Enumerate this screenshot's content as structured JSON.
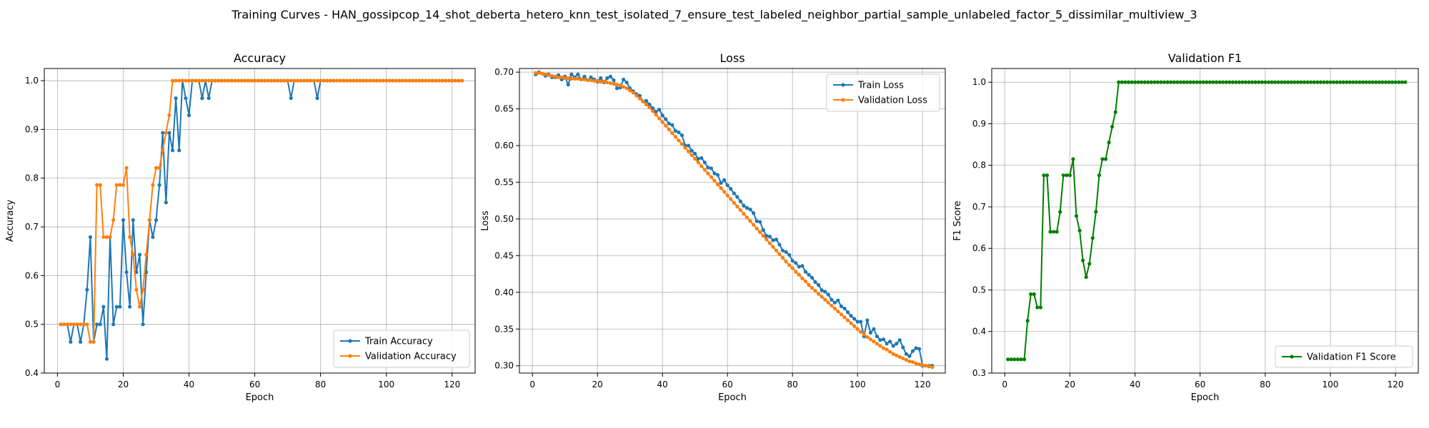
{
  "figure": {
    "suptitle": "Training Curves - HAN_gossipcop_14_shot_deberta_hetero_knn_test_isolated_7_ensure_test_labeled_neighbor_partial_sample_unlabeled_factor_5_dissimilar_multiview_3"
  },
  "chart_data": [
    {
      "type": "line",
      "title": "Accuracy",
      "xlabel": "Epoch",
      "ylabel": "Accuracy",
      "xlim": [
        -4,
        127
      ],
      "ylim": [
        0.4,
        1.025
      ],
      "xticks": [
        0,
        20,
        40,
        60,
        80,
        100,
        120
      ],
      "yticks": [
        0.4,
        0.5,
        0.6,
        0.7,
        0.8,
        0.9,
        1.0
      ],
      "grid": true,
      "legend_position": "bottom-right",
      "x": [
        1,
        2,
        3,
        4,
        5,
        6,
        7,
        8,
        9,
        10,
        11,
        12,
        13,
        14,
        15,
        16,
        17,
        18,
        19,
        20,
        21,
        22,
        23,
        24,
        25,
        26,
        27,
        28,
        29,
        30,
        31,
        32,
        33,
        34,
        35,
        36,
        37,
        38,
        39,
        40,
        41,
        42,
        43,
        44,
        45,
        46,
        47,
        48,
        49,
        50,
        51,
        52,
        53,
        54,
        55,
        56,
        57,
        58,
        59,
        60,
        61,
        62,
        63,
        64,
        65,
        66,
        67,
        68,
        69,
        70,
        71,
        72,
        73,
        74,
        75,
        76,
        77,
        78,
        79,
        80,
        81,
        82,
        83,
        84,
        85,
        86,
        87,
        88,
        89,
        90,
        91,
        92,
        93,
        94,
        95,
        96,
        97,
        98,
        99,
        100,
        101,
        102,
        103,
        104,
        105,
        106,
        107,
        108,
        109,
        110,
        111,
        112,
        113,
        114,
        115,
        116,
        117,
        118,
        119,
        120,
        121,
        122,
        123
      ],
      "series": [
        {
          "name": "Train Accuracy",
          "color": "#1f77b4",
          "values": [
            0.5,
            0.5,
            0.5,
            0.464,
            0.5,
            0.5,
            0.464,
            0.5,
            0.571,
            0.679,
            0.464,
            0.5,
            0.5,
            0.536,
            0.429,
            0.679,
            0.5,
            0.536,
            0.536,
            0.714,
            0.607,
            0.536,
            0.714,
            0.607,
            0.643,
            0.5,
            0.607,
            0.714,
            0.679,
            0.714,
            0.786,
            0.893,
            0.75,
            0.893,
            0.857,
            0.964,
            0.857,
            1.0,
            0.964,
            0.929,
            1.0,
            1.0,
            1.0,
            0.964,
            1.0,
            0.964,
            1.0,
            1.0,
            1.0,
            1.0,
            1.0,
            1.0,
            1.0,
            1.0,
            1.0,
            1.0,
            1.0,
            1.0,
            1.0,
            1.0,
            1.0,
            1.0,
            1.0,
            1.0,
            1.0,
            1.0,
            1.0,
            1.0,
            1.0,
            1.0,
            0.964,
            1.0,
            1.0,
            1.0,
            1.0,
            1.0,
            1.0,
            1.0,
            0.964,
            1.0,
            1.0,
            1.0,
            1.0,
            1.0,
            1.0,
            1.0,
            1.0,
            1.0,
            1.0,
            1.0,
            1.0,
            1.0,
            1.0,
            1.0,
            1.0,
            1.0,
            1.0,
            1.0,
            1.0,
            1.0,
            1.0,
            1.0,
            1.0,
            1.0,
            1.0,
            1.0,
            1.0,
            1.0,
            1.0,
            1.0,
            1.0,
            1.0,
            1.0,
            1.0,
            1.0,
            1.0,
            1.0,
            1.0,
            1.0,
            1.0,
            1.0,
            1.0,
            1.0
          ]
        },
        {
          "name": "Validation Accuracy",
          "color": "#ff7f0e",
          "values": [
            0.5,
            0.5,
            0.5,
            0.5,
            0.5,
            0.5,
            0.5,
            0.5,
            0.5,
            0.464,
            0.464,
            0.786,
            0.786,
            0.679,
            0.679,
            0.679,
            0.714,
            0.786,
            0.786,
            0.786,
            0.821,
            0.679,
            0.643,
            0.571,
            0.536,
            0.571,
            0.643,
            0.714,
            0.786,
            0.821,
            0.821,
            0.857,
            0.893,
            0.929,
            1.0,
            1.0,
            1.0,
            1.0,
            1.0,
            1.0,
            1.0,
            1.0,
            1.0,
            1.0,
            1.0,
            1.0,
            1.0,
            1.0,
            1.0,
            1.0,
            1.0,
            1.0,
            1.0,
            1.0,
            1.0,
            1.0,
            1.0,
            1.0,
            1.0,
            1.0,
            1.0,
            1.0,
            1.0,
            1.0,
            1.0,
            1.0,
            1.0,
            1.0,
            1.0,
            1.0,
            1.0,
            1.0,
            1.0,
            1.0,
            1.0,
            1.0,
            1.0,
            1.0,
            1.0,
            1.0,
            1.0,
            1.0,
            1.0,
            1.0,
            1.0,
            1.0,
            1.0,
            1.0,
            1.0,
            1.0,
            1.0,
            1.0,
            1.0,
            1.0,
            1.0,
            1.0,
            1.0,
            1.0,
            1.0,
            1.0,
            1.0,
            1.0,
            1.0,
            1.0,
            1.0,
            1.0,
            1.0,
            1.0,
            1.0,
            1.0,
            1.0,
            1.0,
            1.0,
            1.0,
            1.0,
            1.0,
            1.0,
            1.0,
            1.0,
            1.0,
            1.0,
            1.0,
            1.0
          ]
        }
      ]
    },
    {
      "type": "line",
      "title": "Loss",
      "xlabel": "Epoch",
      "ylabel": "Loss",
      "xlim": [
        -4,
        127
      ],
      "ylim": [
        0.29,
        0.705
      ],
      "xticks": [
        0,
        20,
        40,
        60,
        80,
        100,
        120
      ],
      "yticks": [
        0.3,
        0.35,
        0.4,
        0.45,
        0.5,
        0.55,
        0.6,
        0.65,
        0.7
      ],
      "grid": true,
      "legend_position": "top-right",
      "x": [
        1,
        2,
        3,
        4,
        5,
        6,
        7,
        8,
        9,
        10,
        11,
        12,
        13,
        14,
        15,
        16,
        17,
        18,
        19,
        20,
        21,
        22,
        23,
        24,
        25,
        26,
        27,
        28,
        29,
        30,
        31,
        32,
        33,
        34,
        35,
        36,
        37,
        38,
        39,
        40,
        41,
        42,
        43,
        44,
        45,
        46,
        47,
        48,
        49,
        50,
        51,
        52,
        53,
        54,
        55,
        56,
        57,
        58,
        59,
        60,
        61,
        62,
        63,
        64,
        65,
        66,
        67,
        68,
        69,
        70,
        71,
        72,
        73,
        74,
        75,
        76,
        77,
        78,
        79,
        80,
        81,
        82,
        83,
        84,
        85,
        86,
        87,
        88,
        89,
        90,
        91,
        92,
        93,
        94,
        95,
        96,
        97,
        98,
        99,
        100,
        101,
        102,
        103,
        104,
        105,
        106,
        107,
        108,
        109,
        110,
        111,
        112,
        113,
        114,
        115,
        116,
        117,
        118,
        119,
        120,
        121,
        122,
        123
      ],
      "series": [
        {
          "name": "Train Loss",
          "color": "#1f77b4",
          "values": [
            0.697,
            0.7,
            0.698,
            0.695,
            0.697,
            0.693,
            0.693,
            0.696,
            0.69,
            0.694,
            0.683,
            0.697,
            0.693,
            0.697,
            0.69,
            0.694,
            0.689,
            0.693,
            0.69,
            0.687,
            0.692,
            0.686,
            0.692,
            0.694,
            0.689,
            0.678,
            0.679,
            0.69,
            0.686,
            0.678,
            0.674,
            0.67,
            0.668,
            0.66,
            0.661,
            0.656,
            0.651,
            0.646,
            0.649,
            0.641,
            0.636,
            0.63,
            0.628,
            0.62,
            0.618,
            0.614,
            0.6,
            0.6,
            0.593,
            0.589,
            0.582,
            0.583,
            0.577,
            0.57,
            0.569,
            0.562,
            0.56,
            0.549,
            0.553,
            0.546,
            0.541,
            0.535,
            0.53,
            0.524,
            0.518,
            0.515,
            0.513,
            0.508,
            0.497,
            0.496,
            0.485,
            0.477,
            0.476,
            0.471,
            0.472,
            0.465,
            0.457,
            0.455,
            0.451,
            0.443,
            0.44,
            0.435,
            0.436,
            0.428,
            0.424,
            0.42,
            0.414,
            0.41,
            0.403,
            0.401,
            0.397,
            0.39,
            0.386,
            0.389,
            0.381,
            0.378,
            0.373,
            0.368,
            0.364,
            0.36,
            0.36,
            0.34,
            0.362,
            0.345,
            0.35,
            0.34,
            0.335,
            0.336,
            0.33,
            0.333,
            0.327,
            0.33,
            0.335,
            0.325,
            0.316,
            0.313,
            0.32,
            0.324,
            0.323,
            0.3,
            0.3,
            0.3,
            0.3
          ]
        },
        {
          "name": "Validation Loss",
          "color": "#ff7f0e",
          "values": [
            0.699,
            0.699,
            0.698,
            0.697,
            0.696,
            0.695,
            0.694,
            0.693,
            0.693,
            0.692,
            0.692,
            0.691,
            0.691,
            0.691,
            0.69,
            0.69,
            0.689,
            0.689,
            0.688,
            0.688,
            0.687,
            0.687,
            0.686,
            0.685,
            0.684,
            0.683,
            0.682,
            0.68,
            0.678,
            0.675,
            0.672,
            0.668,
            0.664,
            0.66,
            0.656,
            0.652,
            0.647,
            0.642,
            0.637,
            0.632,
            0.627,
            0.622,
            0.617,
            0.612,
            0.607,
            0.602,
            0.597,
            0.592,
            0.587,
            0.582,
            0.577,
            0.572,
            0.567,
            0.562,
            0.557,
            0.552,
            0.547,
            0.542,
            0.537,
            0.532,
            0.527,
            0.522,
            0.517,
            0.512,
            0.507,
            0.502,
            0.497,
            0.492,
            0.487,
            0.482,
            0.477,
            0.472,
            0.467,
            0.462,
            0.457,
            0.452,
            0.447,
            0.442,
            0.437,
            0.433,
            0.428,
            0.424,
            0.419,
            0.415,
            0.41,
            0.406,
            0.402,
            0.398,
            0.394,
            0.39,
            0.386,
            0.382,
            0.378,
            0.374,
            0.37,
            0.366,
            0.362,
            0.358,
            0.354,
            0.35,
            0.346,
            0.343,
            0.339,
            0.336,
            0.333,
            0.33,
            0.327,
            0.324,
            0.322,
            0.319,
            0.316,
            0.314,
            0.312,
            0.31,
            0.308,
            0.306,
            0.305,
            0.303,
            0.302,
            0.301,
            0.3,
            0.299,
            0.298
          ]
        }
      ]
    },
    {
      "type": "line",
      "title": "Validation F1",
      "xlabel": "Epoch",
      "ylabel": "F1 Score",
      "xlim": [
        -4,
        127
      ],
      "ylim": [
        0.3,
        1.033
      ],
      "xticks": [
        0,
        20,
        40,
        60,
        80,
        100,
        120
      ],
      "yticks": [
        0.3,
        0.4,
        0.5,
        0.6,
        0.7,
        0.8,
        0.9,
        1.0
      ],
      "grid": true,
      "legend_position": "bottom-right",
      "x": [
        1,
        2,
        3,
        4,
        5,
        6,
        7,
        8,
        9,
        10,
        11,
        12,
        13,
        14,
        15,
        16,
        17,
        18,
        19,
        20,
        21,
        22,
        23,
        24,
        25,
        26,
        27,
        28,
        29,
        30,
        31,
        32,
        33,
        34,
        35,
        36,
        37,
        38,
        39,
        40,
        41,
        42,
        43,
        44,
        45,
        46,
        47,
        48,
        49,
        50,
        51,
        52,
        53,
        54,
        55,
        56,
        57,
        58,
        59,
        60,
        61,
        62,
        63,
        64,
        65,
        66,
        67,
        68,
        69,
        70,
        71,
        72,
        73,
        74,
        75,
        76,
        77,
        78,
        79,
        80,
        81,
        82,
        83,
        84,
        85,
        86,
        87,
        88,
        89,
        90,
        91,
        92,
        93,
        94,
        95,
        96,
        97,
        98,
        99,
        100,
        101,
        102,
        103,
        104,
        105,
        106,
        107,
        108,
        109,
        110,
        111,
        112,
        113,
        114,
        115,
        116,
        117,
        118,
        119,
        120,
        121,
        122,
        123
      ],
      "series": [
        {
          "name": "Validation F1 Score",
          "color": "#008000",
          "values": [
            0.333,
            0.333,
            0.333,
            0.333,
            0.333,
            0.333,
            0.426,
            0.49,
            0.49,
            0.458,
            0.458,
            0.776,
            0.776,
            0.64,
            0.64,
            0.64,
            0.688,
            0.776,
            0.776,
            0.776,
            0.815,
            0.678,
            0.643,
            0.571,
            0.531,
            0.563,
            0.625,
            0.688,
            0.776,
            0.815,
            0.815,
            0.855,
            0.893,
            0.928,
            1.0,
            1.0,
            1.0,
            1.0,
            1.0,
            1.0,
            1.0,
            1.0,
            1.0,
            1.0,
            1.0,
            1.0,
            1.0,
            1.0,
            1.0,
            1.0,
            1.0,
            1.0,
            1.0,
            1.0,
            1.0,
            1.0,
            1.0,
            1.0,
            1.0,
            1.0,
            1.0,
            1.0,
            1.0,
            1.0,
            1.0,
            1.0,
            1.0,
            1.0,
            1.0,
            1.0,
            1.0,
            1.0,
            1.0,
            1.0,
            1.0,
            1.0,
            1.0,
            1.0,
            1.0,
            1.0,
            1.0,
            1.0,
            1.0,
            1.0,
            1.0,
            1.0,
            1.0,
            1.0,
            1.0,
            1.0,
            1.0,
            1.0,
            1.0,
            1.0,
            1.0,
            1.0,
            1.0,
            1.0,
            1.0,
            1.0,
            1.0,
            1.0,
            1.0,
            1.0,
            1.0,
            1.0,
            1.0,
            1.0,
            1.0,
            1.0,
            1.0,
            1.0,
            1.0,
            1.0,
            1.0,
            1.0,
            1.0,
            1.0,
            1.0,
            1.0,
            1.0,
            1.0,
            1.0
          ]
        }
      ]
    }
  ]
}
